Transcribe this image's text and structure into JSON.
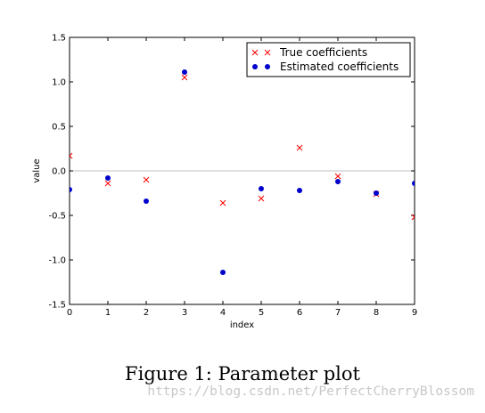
{
  "chart_data": {
    "type": "scatter",
    "title": "",
    "xlabel": "index",
    "ylabel": "value",
    "xlim": [
      0,
      9
    ],
    "ylim": [
      -1.5,
      1.5
    ],
    "xticks": [
      "0",
      "1",
      "2",
      "3",
      "4",
      "5",
      "6",
      "7",
      "8",
      "9"
    ],
    "yticks": [
      "1.5",
      "1.0",
      "0.5",
      "0.0",
      "-0.5",
      "-1.0",
      "-1.5"
    ],
    "grid": false,
    "hline_at": 0.0,
    "legend_position": "top-right",
    "series": [
      {
        "name": "True coefficients",
        "marker": "x",
        "color": "#ff0000",
        "x": [
          0,
          1,
          2,
          3,
          4,
          5,
          6,
          7,
          8,
          9
        ],
        "y": [
          0.17,
          -0.14,
          -0.1,
          1.05,
          -0.36,
          -0.31,
          0.26,
          -0.06,
          -0.26,
          -0.52
        ]
      },
      {
        "name": "Estimated coefficients",
        "marker": "circle",
        "color": "#0000cc",
        "x": [
          0,
          1,
          2,
          3,
          4,
          5,
          6,
          7,
          8,
          9
        ],
        "y": [
          -0.21,
          -0.08,
          -0.34,
          1.11,
          -1.14,
          -0.2,
          -0.22,
          -0.12,
          -0.25,
          -0.14
        ]
      }
    ]
  },
  "caption": "Figure 1:  Parameter plot",
  "watermark": "https://blog.csdn.net/PerfectCherryBlossom"
}
